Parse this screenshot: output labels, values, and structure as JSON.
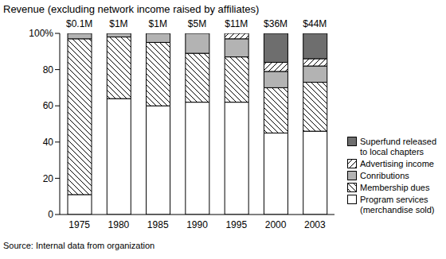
{
  "chart_data": {
    "type": "bar",
    "title": "Revenue (excluding network income raised by affiliates)",
    "source": "Source: Internal data from organization",
    "categories": [
      "1975",
      "1980",
      "1985",
      "1990",
      "1995",
      "2000",
      "2003"
    ],
    "series": [
      {
        "name": "Program services (merchandise sold)",
        "color": "#ffffff",
        "values": [
          11,
          64,
          60,
          62,
          62,
          45,
          46
        ]
      },
      {
        "name": "Membership dues",
        "color": "#ffffff",
        "values": [
          86,
          34,
          35,
          27,
          25,
          25,
          27
        ]
      },
      {
        "name": "Conributions",
        "color": "#b3b3b3",
        "values": [
          3,
          2,
          5,
          11,
          10,
          9,
          9
        ]
      },
      {
        "name": "Advertising income",
        "color": "#ffffff",
        "values": [
          0,
          0,
          0,
          0,
          3,
          5,
          4
        ]
      },
      {
        "name": "Superfund released to local chapters",
        "color": "#6e6e6e",
        "values": [
          0,
          0,
          0,
          0,
          0,
          16,
          14
        ]
      }
    ],
    "totals": {
      "values": [
        0.1,
        1,
        1,
        5,
        11,
        36,
        44
      ],
      "value_labels": [
        "$0.1M",
        "$1M",
        "$1M",
        "$5M",
        "$11M",
        "$36M",
        "$44M"
      ]
    },
    "ylim": [
      0,
      100
    ],
    "yticks": [
      0,
      20,
      40,
      60,
      80,
      {
        "value": 100,
        "label": "100%"
      }
    ],
    "stacked": true,
    "grid": false,
    "legend": "right"
  }
}
